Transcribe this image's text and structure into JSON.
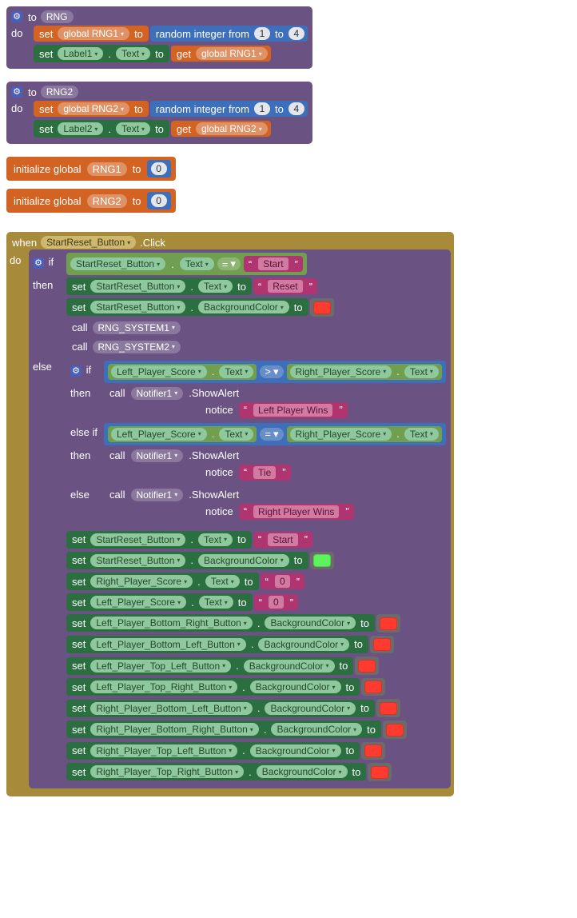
{
  "kw": {
    "to": "to",
    "do": "do",
    "set": "set",
    "get": "get",
    "call": "call",
    "if": "if",
    "then": "then",
    "else": "else",
    "elseif": "else if",
    "when": "when",
    "dot": ".",
    "initialize_global": "initialize global",
    "random_integer_from": "random integer from",
    "notice": "notice",
    "click": ".Click",
    "showalert": ".ShowAlert"
  },
  "proc": {
    "rng": {
      "name": "RNG"
    },
    "rng2": {
      "name": "RNG2"
    }
  },
  "vars": {
    "globalRNG1": "global RNG1",
    "globalRNG2": "global RNG2",
    "RNG1": "RNG1",
    "RNG2": "RNG2"
  },
  "components": {
    "Label1": "Label1",
    "Label2": "Label2",
    "StartReset_Button": "StartReset_Button",
    "Left_Player_Score": "Left_Player_Score",
    "Right_Player_Score": "Right_Player_Score",
    "Notifier1": "Notifier1",
    "Left_Player_Bottom_Right_Button": "Left_Player_Bottom_Right_Button",
    "Left_Player_Bottom_Left_Button": "Left_Player_Bottom_Left_Button",
    "Left_Player_Top_Left_Button": "Left_Player_Top_Left_Button",
    "Left_Player_Top_Right_Button": "Left_Player_Top_Right_Button",
    "Right_Player_Bottom_Left_Button": "Right_Player_Bottom_Left_Button",
    "Right_Player_Bottom_Right_Button": "Right_Player_Bottom_Right_Button",
    "Right_Player_Top_Left_Button": "Right_Player_Top_Left_Button",
    "Right_Player_Top_Right_Button": "Right_Player_Top_Right_Button",
    "RNG_SYSTEM1": "RNG_SYSTEM1",
    "RNG_SYSTEM2": "RNG_SYSTEM2"
  },
  "props": {
    "Text": "Text",
    "BackgroundColor": "BackgroundColor"
  },
  "nums": {
    "one": "1",
    "four": "4",
    "zero": "0"
  },
  "text": {
    "Start": "Start",
    "Reset": "Reset",
    "LeftWins": "Left Player Wins",
    "Tie": "Tie",
    "RightWins": "Right Player Wins",
    "Zero": "0"
  },
  "ops": {
    "eq": "=",
    "gt": ">"
  },
  "colors": {
    "red": "#ff3b30",
    "green": "#5ef25e",
    "block_purple": "#6a5282",
    "block_blue": "#3e6fbb",
    "block_orange": "#d26323",
    "block_greenD": "#2b6e3f",
    "block_olive": "#a88b3a",
    "block_greenC": "#70a04f",
    "block_magenta": "#b0346f",
    "pill_green": "#8fc89d",
    "pill_tan": "#cdb86e",
    "textlit_bg": "#d17aa2",
    "numbox_bg": "#e4e6ec"
  }
}
